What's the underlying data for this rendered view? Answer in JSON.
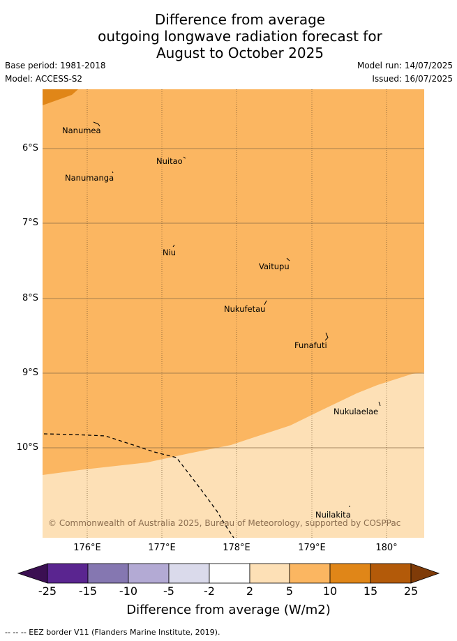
{
  "header": {
    "title_line1": "Difference from average",
    "title_line2": "outgoing longwave radiation forecast for",
    "title_line3": "August to October 2025",
    "base_period": "Base period: 1981-2018",
    "model": "Model: ACCESS-S2",
    "model_run": "Model run: 14/07/2025",
    "issued": "Issued: 16/07/2025"
  },
  "map": {
    "lat_labels": [
      "6°S",
      "7°S",
      "8°S",
      "9°S",
      "10°S"
    ],
    "lon_labels": [
      "176°E",
      "177°E",
      "178°E",
      "179°E",
      "180°"
    ],
    "places": [
      {
        "name": "Nanumea"
      },
      {
        "name": "Nuitao"
      },
      {
        "name": "Nanumanga"
      },
      {
        "name": "Niu"
      },
      {
        "name": "Vaitupu"
      },
      {
        "name": "Nukufetau"
      },
      {
        "name": "Funafuti"
      },
      {
        "name": "Nukulaelae"
      },
      {
        "name": "Nuilakita"
      }
    ],
    "copyright": "© Commonwealth of Australia 2025, Bureau of Meteorology, supported by COSPPac",
    "colors": {
      "fill_5_10": "#fbb661",
      "fill_2_5": "#fde0b6",
      "fill_10_15": "#e08618",
      "grid": "#8a6a45",
      "eez": "#000000"
    }
  },
  "colorbar": {
    "ticks": [
      "-25",
      "-15",
      "-10",
      "-5",
      "-2",
      "2",
      "5",
      "10",
      "15",
      "25"
    ],
    "colors": [
      "#3b0f52",
      "#5a2590",
      "#8577b1",
      "#b3aad4",
      "#dadaeb",
      "#ffffff",
      "#fde0b6",
      "#fbb661",
      "#e08618",
      "#b35a09",
      "#7f3b08"
    ],
    "label": "Difference from average (W/m2)"
  },
  "footer": {
    "legend": "-- -- -- EEZ border V11 (Flanders Marine Institute, 2019)."
  }
}
